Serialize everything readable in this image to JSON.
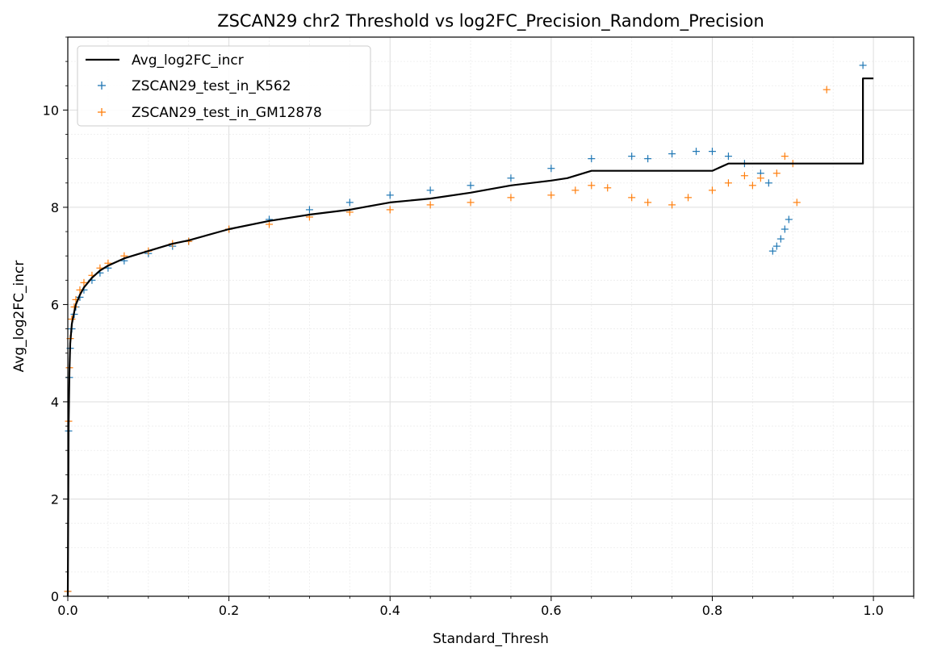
{
  "chart_data": {
    "type": "line",
    "title": "ZSCAN29 chr2 Threshold vs log2FC_Precision_Random_Precision",
    "xlabel": "Standard_Thresh",
    "ylabel": "Avg_log2FC_incr",
    "xlim": [
      0.0,
      1.05
    ],
    "ylim": [
      0,
      11.5
    ],
    "xticks": [
      0.0,
      0.2,
      0.4,
      0.6,
      0.8,
      1.0
    ],
    "xtick_labels": [
      "0.0",
      "0.2",
      "0.4",
      "0.6",
      "0.8",
      "1.0"
    ],
    "yticks": [
      0,
      2,
      4,
      6,
      8,
      10
    ],
    "ytick_labels": [
      "0",
      "2",
      "4",
      "6",
      "8",
      "10"
    ],
    "grid": true,
    "legend_position": "top-left",
    "series": [
      {
        "name": "Avg_log2FC_incr",
        "kind": "line",
        "color": "#000000",
        "x": [
          0.0,
          0.001,
          0.002,
          0.003,
          0.005,
          0.008,
          0.01,
          0.015,
          0.02,
          0.03,
          0.04,
          0.05,
          0.07,
          0.1,
          0.13,
          0.15,
          0.2,
          0.25,
          0.3,
          0.35,
          0.4,
          0.45,
          0.5,
          0.55,
          0.6,
          0.62,
          0.65,
          0.7,
          0.75,
          0.8,
          0.82,
          0.9,
          0.95,
          0.987,
          0.987,
          1.0
        ],
        "values": [
          0.0,
          3.5,
          4.6,
          5.2,
          5.6,
          5.85,
          6.0,
          6.2,
          6.35,
          6.55,
          6.7,
          6.8,
          6.95,
          7.1,
          7.25,
          7.32,
          7.55,
          7.72,
          7.85,
          7.95,
          8.1,
          8.18,
          8.3,
          8.45,
          8.55,
          8.6,
          8.75,
          8.75,
          8.75,
          8.75,
          8.9,
          8.9,
          8.9,
          8.9,
          10.65,
          10.65
        ]
      },
      {
        "name": "ZSCAN29_test_in_K562",
        "kind": "scatter",
        "marker": "+",
        "color": "#1f77b4",
        "x": [
          0.0,
          0.001,
          0.002,
          0.003,
          0.005,
          0.008,
          0.01,
          0.015,
          0.02,
          0.03,
          0.04,
          0.05,
          0.07,
          0.1,
          0.13,
          0.15,
          0.2,
          0.25,
          0.3,
          0.35,
          0.4,
          0.45,
          0.5,
          0.55,
          0.6,
          0.65,
          0.7,
          0.72,
          0.75,
          0.78,
          0.8,
          0.82,
          0.84,
          0.86,
          0.87,
          0.875,
          0.88,
          0.885,
          0.89,
          0.895,
          0.987
        ],
        "values": [
          0.1,
          3.4,
          4.5,
          5.1,
          5.5,
          5.8,
          5.95,
          6.15,
          6.3,
          6.5,
          6.65,
          6.75,
          6.9,
          7.05,
          7.2,
          7.3,
          7.55,
          7.75,
          7.95,
          8.1,
          8.25,
          8.35,
          8.45,
          8.6,
          8.8,
          9.0,
          9.05,
          9.0,
          9.1,
          9.15,
          9.15,
          9.05,
          8.9,
          8.7,
          8.5,
          7.1,
          7.2,
          7.35,
          7.55,
          7.75,
          10.92
        ]
      },
      {
        "name": "ZSCAN29_test_in_GM12878",
        "kind": "scatter",
        "marker": "+",
        "color": "#ff7f0e",
        "x": [
          0.0,
          0.001,
          0.002,
          0.003,
          0.005,
          0.008,
          0.01,
          0.015,
          0.02,
          0.03,
          0.04,
          0.05,
          0.07,
          0.1,
          0.13,
          0.15,
          0.2,
          0.25,
          0.3,
          0.35,
          0.4,
          0.45,
          0.5,
          0.55,
          0.6,
          0.63,
          0.65,
          0.67,
          0.7,
          0.72,
          0.75,
          0.77,
          0.8,
          0.82,
          0.84,
          0.85,
          0.86,
          0.88,
          0.89,
          0.9,
          0.905,
          0.942
        ],
        "values": [
          0.1,
          3.6,
          4.7,
          5.3,
          5.7,
          5.95,
          6.1,
          6.3,
          6.45,
          6.6,
          6.75,
          6.85,
          7.0,
          7.1,
          7.25,
          7.3,
          7.55,
          7.65,
          7.8,
          7.9,
          7.95,
          8.05,
          8.1,
          8.2,
          8.25,
          8.35,
          8.45,
          8.4,
          8.2,
          8.1,
          8.05,
          8.2,
          8.35,
          8.5,
          8.65,
          8.45,
          8.6,
          8.7,
          9.05,
          8.9,
          8.1,
          10.42
        ]
      }
    ]
  }
}
